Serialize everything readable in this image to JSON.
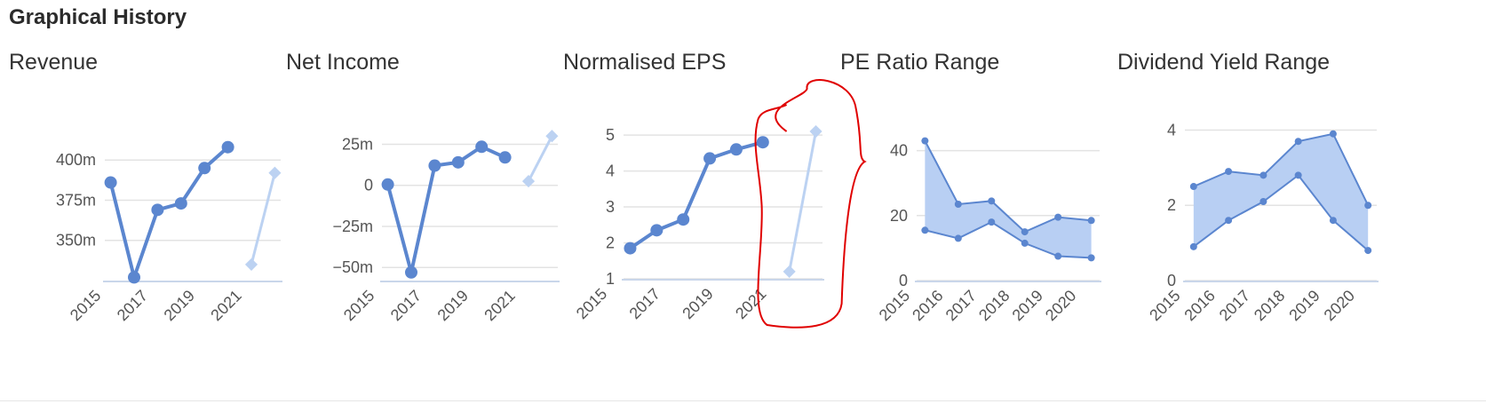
{
  "section": {
    "title": "Graphical History"
  },
  "colors": {
    "actual": "#5b86cf",
    "forecast": "#bcd2f2",
    "range_fill": "#b8cff3",
    "grid": "#e3e3e3",
    "annotation": "#e00000"
  },
  "chart_data": [
    {
      "id": "revenue",
      "type": "line",
      "title": "Revenue",
      "xlabel": "",
      "ylabel": "",
      "x_ticks": [
        "2015",
        "2017",
        "2019",
        "2021"
      ],
      "y_ticks": [
        {
          "v": 350,
          "label": "350m"
        },
        {
          "v": 375,
          "label": "375m"
        },
        {
          "v": 400,
          "label": "400m"
        }
      ],
      "xlim": [
        2014.75,
        2022.25
      ],
      "ylim": [
        325,
        420
      ],
      "series": [
        {
          "role": "actual",
          "x": [
            2015,
            2016,
            2017,
            2018,
            2019,
            2020
          ],
          "values": [
            386,
            327,
            369,
            373,
            395,
            408
          ]
        },
        {
          "role": "forecast",
          "x": [
            2021,
            2022
          ],
          "values": [
            335,
            392
          ]
        }
      ]
    },
    {
      "id": "net-income",
      "type": "line",
      "title": "Net Income",
      "xlabel": "",
      "ylabel": "",
      "x_ticks": [
        "2015",
        "2017",
        "2019",
        "2021"
      ],
      "y_ticks": [
        {
          "v": -50,
          "label": "−50m"
        },
        {
          "v": -25,
          "label": "−25m"
        },
        {
          "v": 0,
          "label": "0"
        },
        {
          "v": 25,
          "label": "25m"
        }
      ],
      "xlim": [
        2014.75,
        2022.25
      ],
      "ylim": [
        -58,
        35
      ],
      "series": [
        {
          "role": "actual",
          "x": [
            2015,
            2016,
            2017,
            2018,
            2019,
            2020
          ],
          "values": [
            0.5,
            -53,
            12,
            14,
            23.5,
            17
          ]
        },
        {
          "role": "forecast",
          "x": [
            2021,
            2022
          ],
          "values": [
            2.5,
            30
          ]
        }
      ]
    },
    {
      "id": "normalised-eps",
      "type": "line",
      "title": "Normalised EPS",
      "xlabel": "",
      "ylabel": "",
      "x_ticks": [
        "2015",
        "2017",
        "2019",
        "2021"
      ],
      "y_ticks": [
        {
          "v": 1,
          "label": "1"
        },
        {
          "v": 2,
          "label": "2"
        },
        {
          "v": 3,
          "label": "3"
        },
        {
          "v": 4,
          "label": "4"
        },
        {
          "v": 5,
          "label": "5"
        }
      ],
      "xlim": [
        2014.75,
        2022.25
      ],
      "ylim": [
        1,
        5.2
      ],
      "series": [
        {
          "role": "actual",
          "x": [
            2015,
            2016,
            2017,
            2018,
            2019,
            2020
          ],
          "values": [
            1.85,
            2.35,
            2.65,
            4.35,
            4.6,
            4.8
          ]
        },
        {
          "role": "forecast",
          "x": [
            2021,
            2022
          ],
          "values": [
            1.2,
            5.1
          ]
        }
      ],
      "annotation": "red hand-drawn loop around the 2021 forecast"
    },
    {
      "id": "pe-ratio-range",
      "type": "area",
      "title": "PE Ratio Range",
      "xlabel": "",
      "ylabel": "",
      "x_ticks": [
        "2015",
        "2016",
        "2017",
        "2018",
        "2019",
        "2020"
      ],
      "y_ticks": [
        {
          "v": 0,
          "label": "0"
        },
        {
          "v": 20,
          "label": "20"
        },
        {
          "v": 40,
          "label": "40"
        }
      ],
      "xlim": [
        2014.75,
        2020.25
      ],
      "ylim": [
        0,
        47
      ],
      "x": [
        2015,
        2016,
        2017,
        2018,
        2019,
        2020
      ],
      "high": [
        43,
        23.5,
        24.5,
        15,
        19.5,
        18.5
      ],
      "low": [
        15.5,
        13,
        18,
        11.5,
        7.5,
        7
      ]
    },
    {
      "id": "dividend-yield-range",
      "type": "area",
      "title": "Dividend Yield Range",
      "xlabel": "",
      "ylabel": "",
      "x_ticks": [
        "2015",
        "2016",
        "2017",
        "2018",
        "2019",
        "2020"
      ],
      "y_ticks": [
        {
          "v": 0,
          "label": "0"
        },
        {
          "v": 2,
          "label": "2"
        },
        {
          "v": 4,
          "label": "4"
        }
      ],
      "xlim": [
        2014.75,
        2020.25
      ],
      "ylim": [
        0,
        4.2
      ],
      "x": [
        2015,
        2016,
        2017,
        2018,
        2019,
        2020
      ],
      "high": [
        2.5,
        2.9,
        2.8,
        3.7,
        3.9,
        2.0
      ],
      "low": [
        0.9,
        1.6,
        2.1,
        2.8,
        1.6,
        0.8
      ]
    }
  ]
}
